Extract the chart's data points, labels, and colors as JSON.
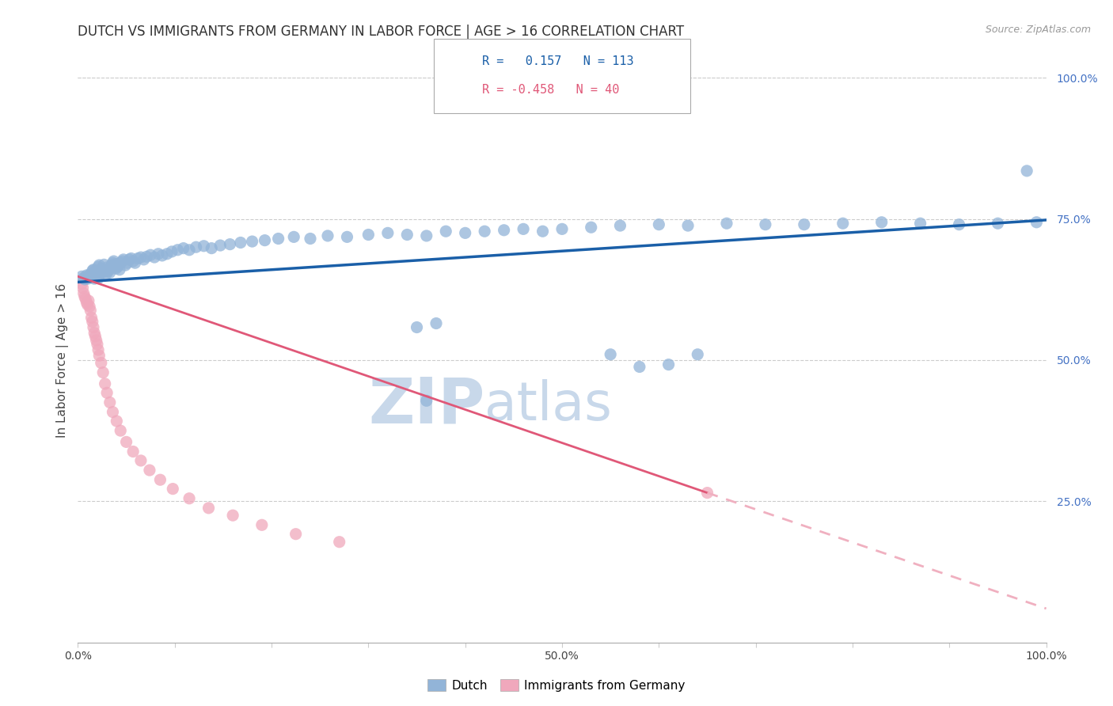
{
  "title": "DUTCH VS IMMIGRANTS FROM GERMANY IN LABOR FORCE | AGE > 16 CORRELATION CHART",
  "source": "Source: ZipAtlas.com",
  "ylabel": "In Labor Force | Age > 16",
  "xlim": [
    0,
    1
  ],
  "ylim": [
    0,
    1
  ],
  "xticklabels": [
    "0.0%",
    "",
    "",
    "",
    "",
    "50.0%",
    "",
    "",
    "",
    "",
    "100.0%"
  ],
  "ytick_positions": [
    0.25,
    0.5,
    0.75,
    1.0
  ],
  "ytick_labels": [
    "25.0%",
    "50.0%",
    "75.0%",
    "100.0%"
  ],
  "legend_blue_r": "0.157",
  "legend_blue_n": "113",
  "legend_pink_r": "-0.458",
  "legend_pink_n": "40",
  "legend_label_blue": "Dutch",
  "legend_label_pink": "Immigrants from Germany",
  "blue_color": "#92b4d8",
  "pink_color": "#f0a8bc",
  "trendline_blue_color": "#1a5fa8",
  "trendline_pink_color": "#e05878",
  "trendline_pink_dashed_color": "#f0b0c0",
  "watermark_zip": "ZIP",
  "watermark_atlas": "atlas",
  "watermark_color": "#c8d8ea",
  "grid_color": "#cccccc",
  "background_color": "#ffffff",
  "title_fontsize": 12,
  "axis_label_fontsize": 11,
  "tick_fontsize": 10,
  "blue_trend_x0": 0.0,
  "blue_trend_x1": 1.0,
  "blue_trend_y0": 0.638,
  "blue_trend_y1": 0.748,
  "pink_trend_x0": 0.0,
  "pink_trend_x_break": 0.65,
  "pink_trend_x1": 1.0,
  "pink_trend_y0": 0.648,
  "pink_trend_y_break": 0.265,
  "pink_trend_y1": 0.06,
  "blue_x": [
    0.004,
    0.006,
    0.007,
    0.008,
    0.009,
    0.01,
    0.011,
    0.012,
    0.013,
    0.014,
    0.015,
    0.015,
    0.016,
    0.016,
    0.017,
    0.017,
    0.018,
    0.018,
    0.019,
    0.019,
    0.02,
    0.021,
    0.021,
    0.022,
    0.022,
    0.023,
    0.024,
    0.025,
    0.026,
    0.027,
    0.028,
    0.029,
    0.03,
    0.031,
    0.032,
    0.033,
    0.034,
    0.035,
    0.036,
    0.037,
    0.038,
    0.039,
    0.04,
    0.041,
    0.042,
    0.043,
    0.044,
    0.046,
    0.047,
    0.049,
    0.051,
    0.053,
    0.055,
    0.057,
    0.059,
    0.062,
    0.065,
    0.068,
    0.071,
    0.075,
    0.079,
    0.083,
    0.087,
    0.092,
    0.097,
    0.103,
    0.109,
    0.115,
    0.122,
    0.13,
    0.138,
    0.147,
    0.157,
    0.168,
    0.18,
    0.193,
    0.207,
    0.223,
    0.24,
    0.258,
    0.278,
    0.3,
    0.32,
    0.34,
    0.36,
    0.38,
    0.4,
    0.42,
    0.44,
    0.46,
    0.48,
    0.5,
    0.53,
    0.56,
    0.6,
    0.63,
    0.67,
    0.71,
    0.75,
    0.79,
    0.83,
    0.87,
    0.91,
    0.95,
    0.99,
    0.35,
    0.37,
    0.36,
    0.55,
    0.58,
    0.61,
    0.64,
    0.98
  ],
  "blue_y": [
    0.648,
    0.645,
    0.643,
    0.647,
    0.65,
    0.644,
    0.648,
    0.65,
    0.652,
    0.646,
    0.658,
    0.648,
    0.652,
    0.66,
    0.644,
    0.655,
    0.648,
    0.658,
    0.652,
    0.646,
    0.658,
    0.665,
    0.645,
    0.652,
    0.668,
    0.657,
    0.66,
    0.662,
    0.655,
    0.669,
    0.658,
    0.652,
    0.664,
    0.657,
    0.66,
    0.655,
    0.663,
    0.668,
    0.672,
    0.675,
    0.668,
    0.662,
    0.67,
    0.665,
    0.668,
    0.66,
    0.672,
    0.675,
    0.678,
    0.668,
    0.672,
    0.678,
    0.68,
    0.675,
    0.672,
    0.68,
    0.682,
    0.678,
    0.683,
    0.686,
    0.682,
    0.688,
    0.685,
    0.688,
    0.692,
    0.695,
    0.698,
    0.695,
    0.7,
    0.702,
    0.698,
    0.703,
    0.705,
    0.708,
    0.71,
    0.712,
    0.715,
    0.718,
    0.715,
    0.72,
    0.718,
    0.722,
    0.725,
    0.722,
    0.72,
    0.728,
    0.725,
    0.728,
    0.73,
    0.732,
    0.728,
    0.732,
    0.735,
    0.738,
    0.74,
    0.738,
    0.742,
    0.74,
    0.74,
    0.742,
    0.744,
    0.742,
    0.74,
    0.742,
    0.744,
    0.558,
    0.565,
    0.428,
    0.51,
    0.488,
    0.492,
    0.51,
    0.835
  ],
  "pink_x": [
    0.004,
    0.005,
    0.006,
    0.007,
    0.008,
    0.009,
    0.01,
    0.011,
    0.012,
    0.013,
    0.014,
    0.015,
    0.016,
    0.017,
    0.018,
    0.019,
    0.02,
    0.021,
    0.022,
    0.024,
    0.026,
    0.028,
    0.03,
    0.033,
    0.036,
    0.04,
    0.044,
    0.05,
    0.057,
    0.065,
    0.074,
    0.085,
    0.098,
    0.115,
    0.135,
    0.16,
    0.19,
    0.225,
    0.27,
    0.65
  ],
  "pink_y": [
    0.635,
    0.628,
    0.618,
    0.612,
    0.608,
    0.602,
    0.598,
    0.605,
    0.595,
    0.588,
    0.575,
    0.568,
    0.558,
    0.548,
    0.542,
    0.535,
    0.528,
    0.518,
    0.508,
    0.495,
    0.478,
    0.458,
    0.442,
    0.425,
    0.408,
    0.392,
    0.375,
    0.355,
    0.338,
    0.322,
    0.305,
    0.288,
    0.272,
    0.255,
    0.238,
    0.225,
    0.208,
    0.192,
    0.178,
    0.265
  ]
}
